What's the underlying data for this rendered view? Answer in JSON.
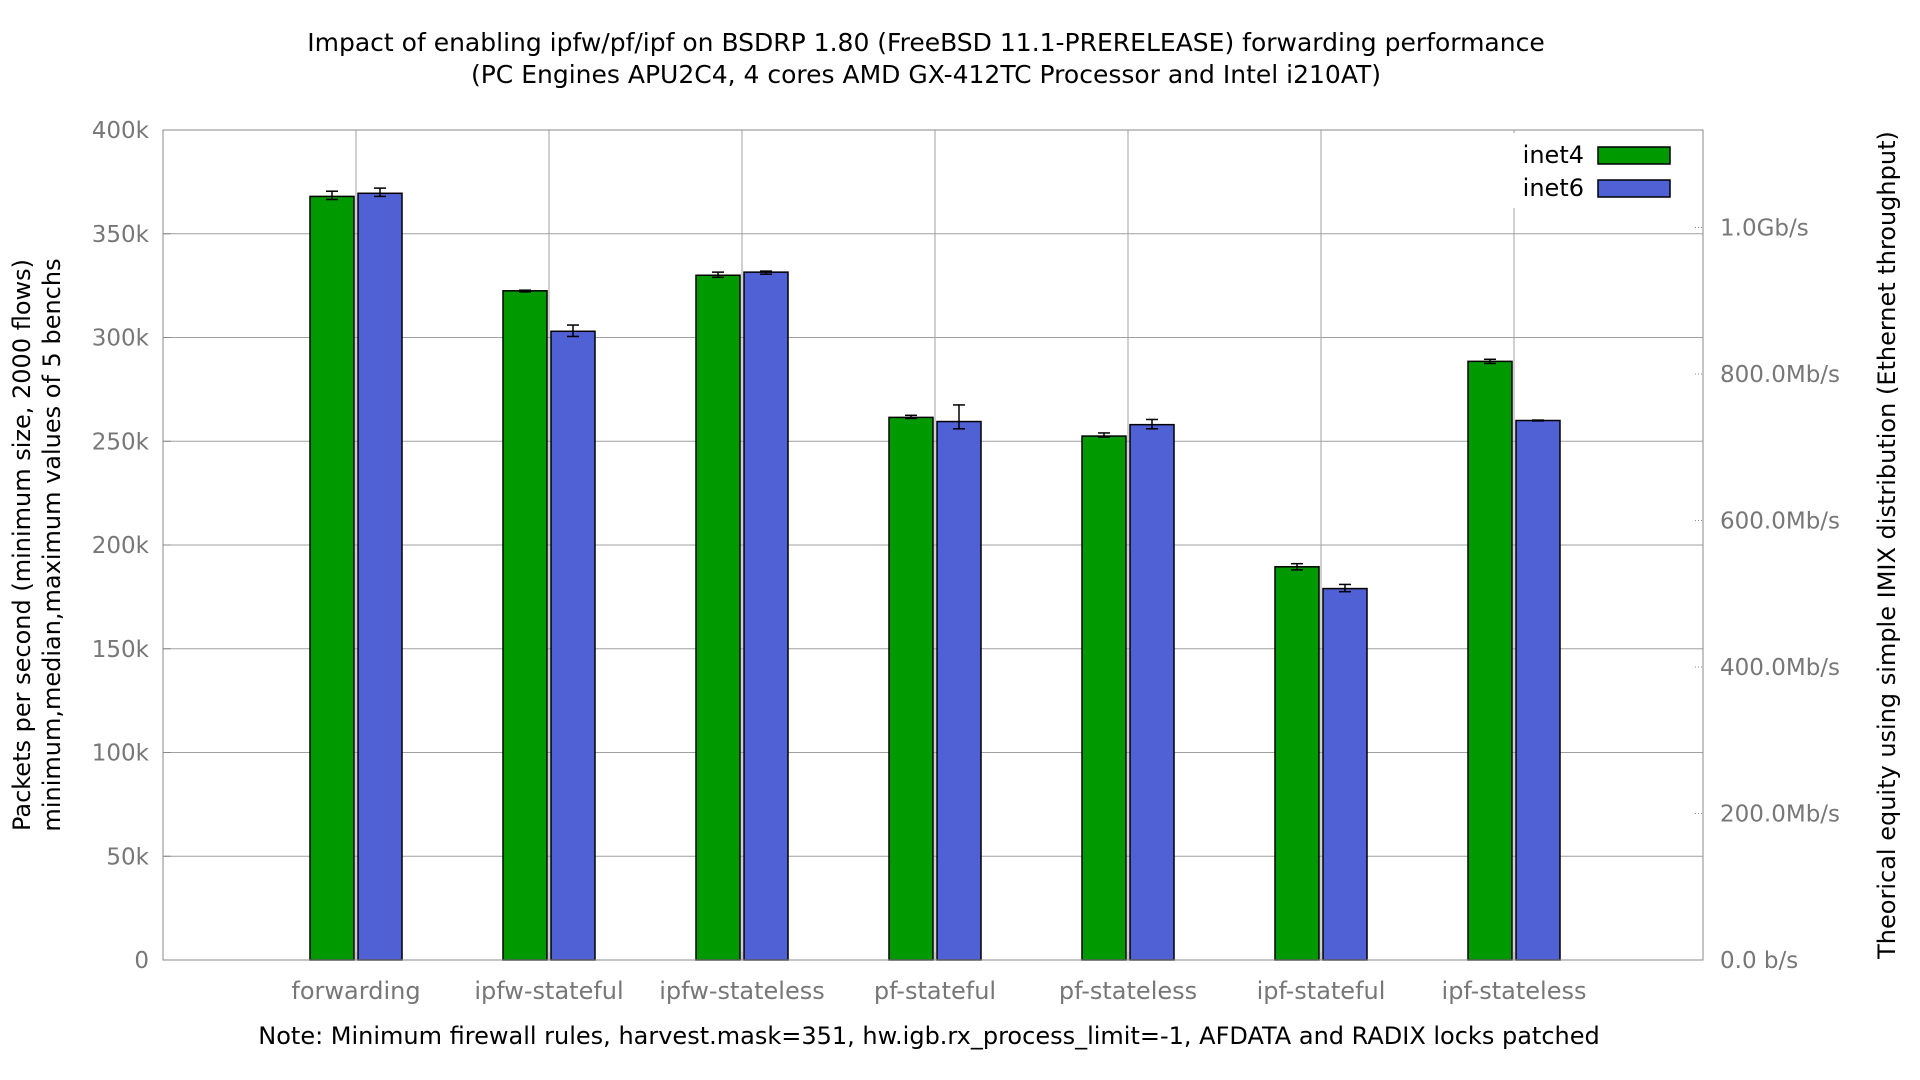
{
  "chart_data": {
    "type": "bar",
    "title": "Impact of enabling ipfw/pf/ipf on BSDRP 1.80 (FreeBSD 11.1-PRERELEASE) forwarding performance",
    "subtitle": "(PC Engines APU2C4, 4 cores AMD GX-412TC Processor and Intel i210AT)",
    "ylabel": "Packets per second (minimum size, 2000 flows)",
    "ylabel2": "minimum,median,maximum values of 5 benchs",
    "y2label": "Theorical equity using simple IMIX distribution (Ethernet throughput)",
    "note": "Note: Minimum firewall rules, harvest.mask=351, hw.igb.rx_process_limit=-1, AFDATA and RADIX locks patched",
    "ylim": [
      0,
      400000
    ],
    "yticks": [
      {
        "value": 0,
        "label": "0"
      },
      {
        "value": 50000,
        "label": "50k"
      },
      {
        "value": 100000,
        "label": "100k"
      },
      {
        "value": 150000,
        "label": "150k"
      },
      {
        "value": 200000,
        "label": "200k"
      },
      {
        "value": 250000,
        "label": "250k"
      },
      {
        "value": 300000,
        "label": "300k"
      },
      {
        "value": 350000,
        "label": "350k"
      },
      {
        "value": 400000,
        "label": "400k"
      }
    ],
    "y2ticks": [
      {
        "value": 0,
        "label": "0.0 b/s"
      },
      {
        "value": 70600,
        "label": "200.0Mb/s"
      },
      {
        "value": 141200,
        "label": "400.0Mb/s"
      },
      {
        "value": 211800,
        "label": "600.0Mb/s"
      },
      {
        "value": 282400,
        "label": "800.0Mb/s"
      },
      {
        "value": 353000,
        "label": "1.0Gb/s"
      }
    ],
    "categories": [
      "forwarding",
      "ipfw-stateful",
      "ipfw-stateless",
      "pf-stateful",
      "pf-stateless",
      "ipf-stateful",
      "ipf-stateless"
    ],
    "series": [
      {
        "name": "inet4",
        "color": "#009900",
        "values": [
          368000,
          322500,
          330000,
          261500,
          252500,
          189500,
          288500
        ],
        "min": [
          366500,
          322000,
          329000,
          261000,
          252000,
          188000,
          287500
        ],
        "max": [
          370500,
          322800,
          331500,
          262500,
          254000,
          191000,
          289500
        ]
      },
      {
        "name": "inet6",
        "color": "#5060d5",
        "values": [
          369500,
          303000,
          331500,
          259500,
          258000,
          179000,
          260000
        ],
        "min": [
          368000,
          300500,
          330500,
          256000,
          256000,
          177500,
          259800
        ],
        "max": [
          372000,
          306000,
          332000,
          267500,
          260500,
          181000,
          260200
        ]
      }
    ],
    "legend_position": "top-right",
    "grid": true
  }
}
